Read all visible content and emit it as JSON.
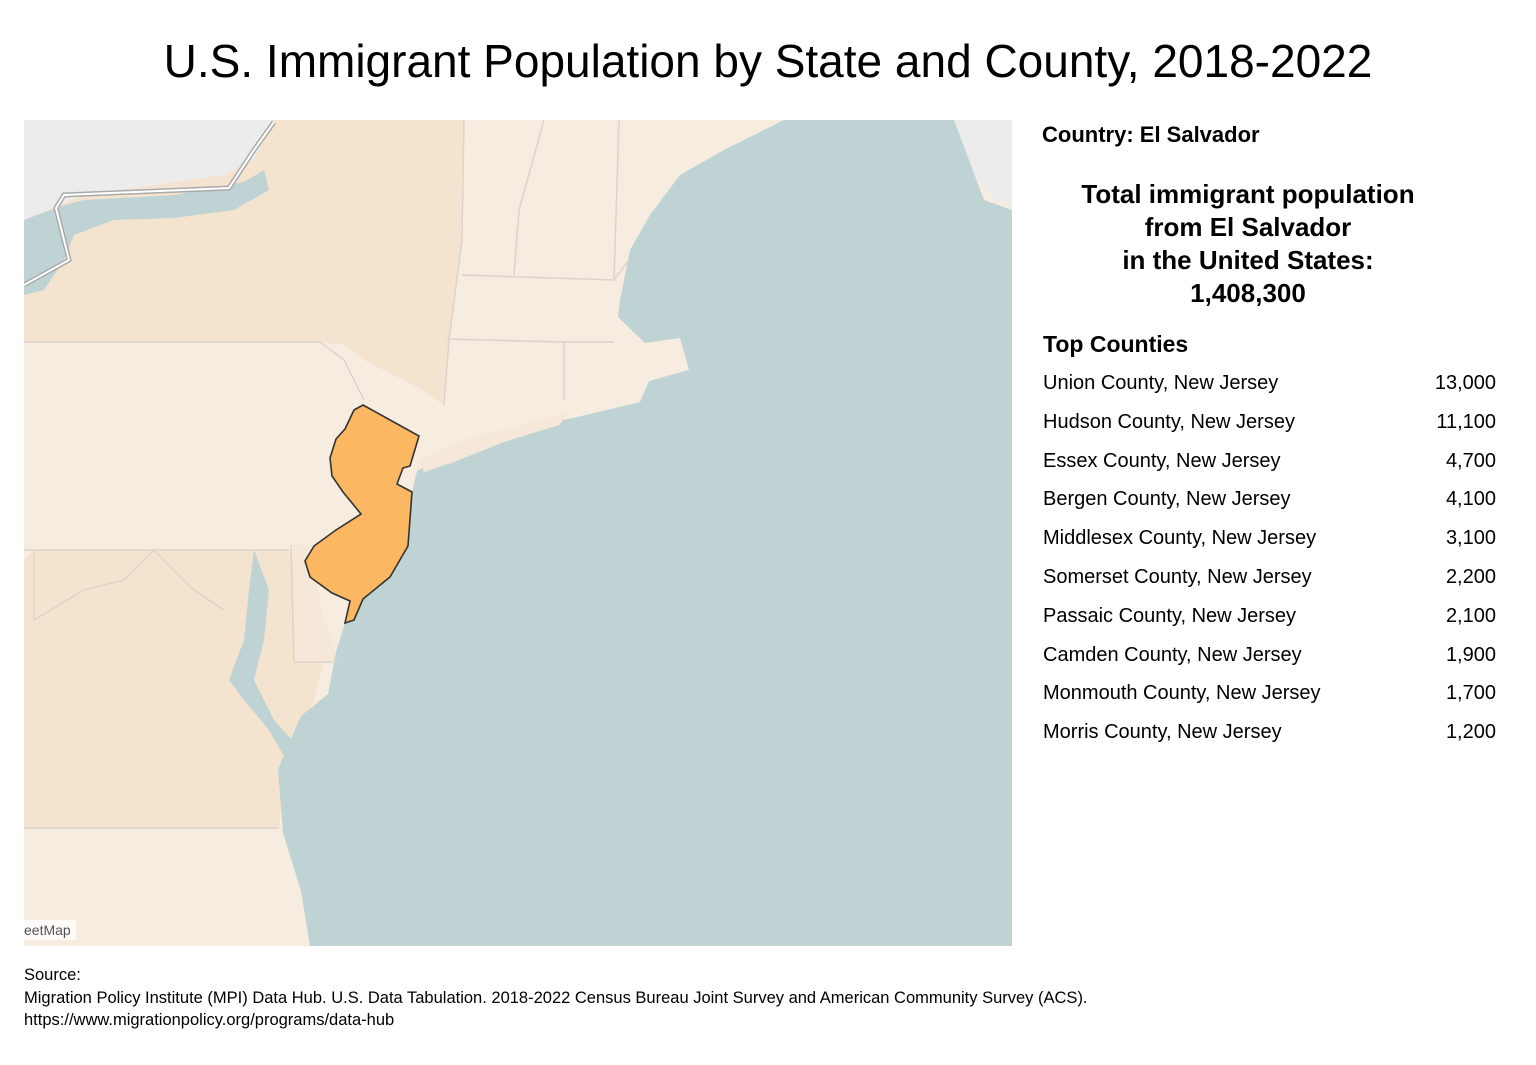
{
  "title": "U.S. Immigrant Population by State and County, 2018-2022",
  "map": {
    "highlighted_state": "New Jersey",
    "highlight_color": "#fbb762",
    "land_color": "#f6ece0",
    "ocean_color": "#c0d3d4",
    "attribution": "eetMap"
  },
  "panel": {
    "country_label": "Country: El Salvador",
    "total_lines": [
      "Total immigrant population",
      "from El Salvador",
      "in the United States:",
      "1,408,300"
    ],
    "top_counties_title": "Top Counties",
    "counties": [
      {
        "name": "Union County, New Jersey",
        "value": "13,000"
      },
      {
        "name": "Hudson County, New Jersey",
        "value": "11,100"
      },
      {
        "name": "Essex County, New Jersey",
        "value": "4,700"
      },
      {
        "name": "Bergen County, New Jersey",
        "value": "4,100"
      },
      {
        "name": "Middlesex County, New Jersey",
        "value": "3,100"
      },
      {
        "name": "Somerset County, New Jersey",
        "value": "2,200"
      },
      {
        "name": "Passaic County, New Jersey",
        "value": "2,100"
      },
      {
        "name": "Camden County, New Jersey",
        "value": "1,900"
      },
      {
        "name": "Monmouth County, New Jersey",
        "value": "1,700"
      },
      {
        "name": "Morris County, New Jersey",
        "value": "1,200"
      }
    ]
  },
  "source": {
    "label": "Source:",
    "line1": "Migration Policy Institute (MPI) Data Hub. U.S. Data Tabulation. 2018-2022 Census Bureau Joint Survey and American Community Survey (ACS).",
    "line2": "https://www.migrationpolicy.org/programs/data-hub"
  }
}
